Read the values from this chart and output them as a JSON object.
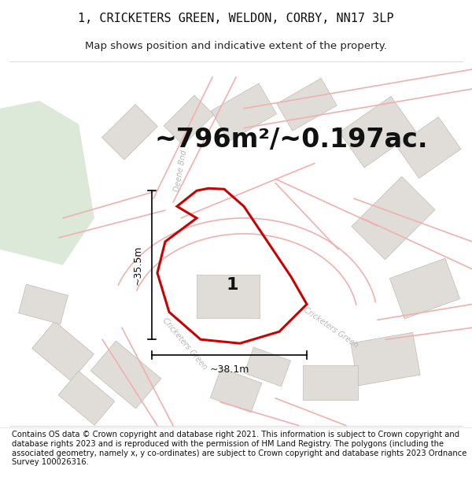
{
  "title_line1": "1, CRICKETERS GREEN, WELDON, CORBY, NN17 3LP",
  "title_line2": "Map shows position and indicative extent of the property.",
  "area_text": "~796m²/~0.197ac.",
  "label_number": "1",
  "dim_width": "~38.1m",
  "dim_height": "~35.5m",
  "footer_text": "Contains OS data © Crown copyright and database right 2021. This information is subject to Crown copyright and database rights 2023 and is reproduced with the permission of HM Land Registry. The polygons (including the associated geometry, namely x, y co-ordinates) are subject to Crown copyright and database rights 2023 Ordnance Survey 100026316.",
  "map_bg": "#f8f6f2",
  "road_color": "#f0b0b0",
  "road_fill": "#ffffff",
  "building_color": "#e0dcd8",
  "building_edge": "#c0bbb6",
  "property_edge": "#cc0000",
  "green_area": "#dce8d8",
  "green_edge": "none",
  "street_label_color": "#b8b8b8",
  "dim_color": "#000000",
  "title_fontsize": 11,
  "subtitle_fontsize": 9.5,
  "area_fontsize": 24,
  "footer_fontsize": 7.2,
  "number_fontsize": 16,
  "street_fontsize": 7
}
